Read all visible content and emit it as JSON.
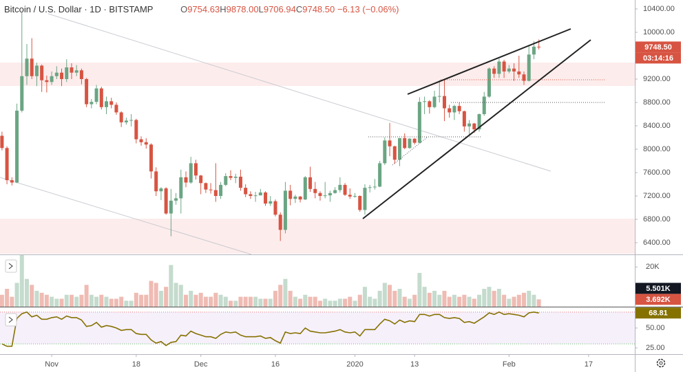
{
  "chart_data": {
    "type": "candlestick",
    "title": "Bitcoin / U.S. Dollar · 1D · BITSTAMP",
    "ohlc_legend": [
      {
        "label": "O",
        "value": "9754.63"
      },
      {
        "label": "H",
        "value": "9878.00"
      },
      {
        "label": "L",
        "value": "9706.94"
      },
      {
        "label": "C",
        "value": "9748.50"
      }
    ],
    "change": "−6.13 (−0.06%)",
    "xlim": [
      -0.4,
      127.3
    ],
    "xticks": [
      {
        "value": 10,
        "label": "Nov"
      },
      {
        "value": 27,
        "label": "18"
      },
      {
        "value": 40,
        "label": "Dec"
      },
      {
        "value": 55,
        "label": "16"
      },
      {
        "value": 71,
        "label": "2020"
      },
      {
        "value": 83,
        "label": "13"
      },
      {
        "value": 102,
        "label": "Feb"
      },
      {
        "value": 118,
        "label": "17"
      }
    ],
    "up_color": "#6ba583",
    "down_color": "#d75442",
    "ylim": [
      6200,
      10553
    ],
    "yticks": [
      {
        "value": 10400,
        "label": "10400.00"
      },
      {
        "value": 10000,
        "label": "10000.00"
      },
      {
        "value": 9200,
        "label": "9200.00"
      },
      {
        "value": 8800,
        "label": "8800.00"
      },
      {
        "value": 8400,
        "label": "8400.00"
      },
      {
        "value": 8000,
        "label": "8000.00"
      },
      {
        "value": 7600,
        "label": "7600.00"
      },
      {
        "value": 7200,
        "label": "7200.00"
      },
      {
        "value": 6800,
        "label": "6800.00"
      },
      {
        "value": 6400,
        "label": "6400.00"
      }
    ],
    "last_value_label": "9748.50",
    "countdown": "03:14:16",
    "values": [
      [
        8230,
        8300,
        7980,
        8020
      ],
      [
        8020,
        8050,
        7400,
        7470
      ],
      [
        7470,
        7520,
        7380,
        7430
      ],
      [
        7430,
        8780,
        7420,
        8660
      ],
      [
        8660,
        10350,
        8630,
        9250
      ],
      [
        9250,
        9800,
        9100,
        9550
      ],
      [
        9550,
        9900,
        9200,
        9250
      ],
      [
        9250,
        9480,
        9080,
        9430
      ],
      [
        9430,
        9450,
        8980,
        9180
      ],
      [
        9180,
        9260,
        8970,
        9150
      ],
      [
        9150,
        9330,
        9100,
        9250
      ],
      [
        9250,
        9420,
        9200,
        9310
      ],
      [
        9310,
        9380,
        9080,
        9200
      ],
      [
        9200,
        9540,
        9150,
        9400
      ],
      [
        9400,
        9470,
        9200,
        9310
      ],
      [
        9310,
        9440,
        9250,
        9350
      ],
      [
        9350,
        9380,
        9110,
        9200
      ],
      [
        9200,
        9220,
        8720,
        8770
      ],
      [
        8770,
        8860,
        8700,
        8810
      ],
      [
        8810,
        9100,
        8770,
        9040
      ],
      [
        9040,
        9070,
        8680,
        8720
      ],
      [
        8720,
        8900,
        8600,
        8820
      ],
      [
        8820,
        8880,
        8700,
        8760
      ],
      [
        8760,
        8800,
        8590,
        8630
      ],
      [
        8630,
        8650,
        8380,
        8460
      ],
      [
        8460,
        8540,
        8420,
        8490
      ],
      [
        8490,
        8600,
        8390,
        8500
      ],
      [
        8500,
        8520,
        8100,
        8170
      ],
      [
        8170,
        8220,
        8060,
        8120
      ],
      [
        8120,
        8190,
        8010,
        8080
      ],
      [
        8080,
        8100,
        7500,
        7620
      ],
      [
        7620,
        7690,
        7200,
        7280
      ],
      [
        7280,
        7350,
        7130,
        7330
      ],
      [
        7330,
        7350,
        6880,
        6900
      ],
      [
        6900,
        7320,
        6510,
        7120
      ],
      [
        7120,
        7250,
        7050,
        7160
      ],
      [
        7160,
        7650,
        6900,
        7520
      ],
      [
        7520,
        7620,
        7350,
        7430
      ],
      [
        7430,
        7870,
        7410,
        7760
      ],
      [
        7760,
        7820,
        7480,
        7550
      ],
      [
        7550,
        7560,
        7230,
        7420
      ],
      [
        7420,
        7430,
        7250,
        7310
      ],
      [
        7310,
        7420,
        7240,
        7300
      ],
      [
        7300,
        7760,
        7100,
        7200
      ],
      [
        7200,
        7440,
        7150,
        7390
      ],
      [
        7390,
        7590,
        7370,
        7540
      ],
      [
        7540,
        7640,
        7470,
        7510
      ],
      [
        7510,
        7580,
        7420,
        7530
      ],
      [
        7530,
        7650,
        7290,
        7340
      ],
      [
        7340,
        7400,
        7180,
        7230
      ],
      [
        7230,
        7280,
        7150,
        7200
      ],
      [
        7200,
        7270,
        7100,
        7210
      ],
      [
        7210,
        7320,
        7210,
        7260
      ],
      [
        7260,
        7280,
        7030,
        7070
      ],
      [
        7070,
        7200,
        7030,
        7110
      ],
      [
        7110,
        7140,
        6850,
        6880
      ],
      [
        6880,
        6920,
        6430,
        6620
      ],
      [
        6620,
        7440,
        6560,
        7290
      ],
      [
        7290,
        7390,
        7040,
        7150
      ],
      [
        7150,
        7220,
        7080,
        7190
      ],
      [
        7190,
        7200,
        7090,
        7140
      ],
      [
        7140,
        7540,
        7130,
        7520
      ],
      [
        7520,
        7700,
        7270,
        7320
      ],
      [
        7320,
        7440,
        7160,
        7250
      ],
      [
        7250,
        7280,
        7120,
        7200
      ],
      [
        7200,
        7440,
        7160,
        7210
      ],
      [
        7210,
        7290,
        7100,
        7250
      ],
      [
        7250,
        7350,
        7240,
        7300
      ],
      [
        7300,
        7520,
        7260,
        7390
      ],
      [
        7390,
        7420,
        7200,
        7220
      ],
      [
        7220,
        7330,
        7150,
        7190
      ],
      [
        7190,
        7250,
        7170,
        7200
      ],
      [
        7200,
        7210,
        6930,
        6960
      ],
      [
        6960,
        7400,
        6880,
        7340
      ],
      [
        7340,
        7390,
        7260,
        7350
      ],
      [
        7350,
        7490,
        7310,
        7360
      ],
      [
        7360,
        7800,
        7350,
        7760
      ],
      [
        7760,
        8200,
        7730,
        8150
      ],
      [
        8150,
        8450,
        7880,
        8050
      ],
      [
        8050,
        8060,
        7750,
        7820
      ],
      [
        7820,
        8190,
        7710,
        8190
      ],
      [
        8190,
        8270,
        8000,
        8020
      ],
      [
        8020,
        8190,
        8010,
        8180
      ],
      [
        8180,
        8190,
        8080,
        8110
      ],
      [
        8110,
        8890,
        8100,
        8810
      ],
      [
        8810,
        8900,
        8600,
        8820
      ],
      [
        8820,
        8840,
        8610,
        8720
      ],
      [
        8720,
        9000,
        8700,
        8900
      ],
      [
        8900,
        9180,
        8800,
        8910
      ],
      [
        8910,
        9190,
        8480,
        8700
      ],
      [
        8700,
        8760,
        8540,
        8630
      ],
      [
        8630,
        8760,
        8500,
        8740
      ],
      [
        8740,
        8800,
        8600,
        8650
      ],
      [
        8650,
        8660,
        8300,
        8390
      ],
      [
        8390,
        8500,
        8240,
        8440
      ],
      [
        8440,
        8450,
        8280,
        8340
      ],
      [
        8340,
        8610,
        8300,
        8600
      ],
      [
        8600,
        8980,
        8570,
        8900
      ],
      [
        8900,
        9400,
        8880,
        9380
      ],
      [
        9380,
        9420,
        9220,
        9290
      ],
      [
        9290,
        9550,
        9220,
        9500
      ],
      [
        9500,
        9530,
        9220,
        9330
      ],
      [
        9330,
        9440,
        9300,
        9380
      ],
      [
        9380,
        9470,
        9170,
        9330
      ],
      [
        9330,
        9600,
        9220,
        9280
      ],
      [
        9280,
        9330,
        9100,
        9170
      ],
      [
        9170,
        9770,
        9160,
        9620
      ],
      [
        9620,
        9850,
        9540,
        9754.63
      ],
      [
        9754.63,
        9878,
        9706.94,
        9748.5
      ]
    ],
    "volume": {
      "ylim": [
        0,
        26
      ],
      "yticks": [
        {
          "value": 20,
          "label": "20K"
        }
      ],
      "up_color": "#6ba58366",
      "down_color": "#d7544266",
      "values": [
        6,
        9,
        5,
        12,
        26,
        14,
        11,
        8,
        7,
        6,
        5,
        4,
        4,
        6,
        6,
        5,
        6,
        11,
        6,
        5,
        6,
        5,
        4,
        4,
        5,
        3,
        3,
        7,
        6,
        6,
        13,
        12,
        8,
        10,
        21,
        12,
        11,
        6,
        8,
        6,
        7,
        5,
        5,
        7,
        6,
        5,
        3,
        3,
        5,
        5,
        5,
        5,
        4,
        4,
        4,
        8,
        11,
        14,
        8,
        5,
        4,
        6,
        5,
        5,
        3,
        4,
        3,
        3,
        4,
        4,
        5,
        3,
        6,
        10,
        5,
        4,
        8,
        12,
        11,
        8,
        9,
        5,
        4,
        6,
        17,
        10,
        7,
        8,
        6,
        8,
        5,
        6,
        5,
        6,
        5,
        4,
        6,
        9,
        10,
        8,
        9,
        6,
        4,
        5,
        6,
        7,
        8,
        6,
        3.692
      ],
      "tags": [
        {
          "value": 3.692,
          "label": "3.692K",
          "color": "#d75442"
        },
        {
          "value": 5.501,
          "label": "5.501K",
          "color": "#131722"
        }
      ]
    },
    "rsi": {
      "color": "#857100",
      "ylim": [
        17.2,
        75.9
      ],
      "yticks": [
        {
          "value": 50,
          "label": "50.00"
        },
        {
          "value": 25,
          "label": "25.00"
        }
      ],
      "bands": [
        70,
        30
      ],
      "band_colors": [
        "#e57373",
        "#66bb6a"
      ],
      "values": [
        30,
        27,
        27,
        62,
        68,
        70,
        64,
        66,
        61,
        61,
        63,
        64,
        61,
        65,
        63,
        63,
        60,
        52,
        53,
        57,
        51,
        53,
        52,
        50,
        47,
        48,
        48,
        43,
        42,
        42,
        35,
        31,
        33,
        28,
        32,
        33,
        41,
        40,
        46,
        43,
        41,
        39,
        39,
        37,
        42,
        45,
        44,
        45,
        41,
        39,
        39,
        39,
        40,
        37,
        38,
        34,
        31,
        45,
        43,
        44,
        43,
        50,
        46,
        45,
        44,
        44,
        45,
        46,
        48,
        45,
        44,
        45,
        40,
        48,
        48,
        48,
        55,
        61,
        59,
        55,
        60,
        57,
        59,
        58,
        67,
        67,
        65,
        67,
        67,
        63,
        62,
        63,
        62,
        57,
        58,
        56,
        60,
        64,
        69,
        67,
        70,
        67,
        68,
        67,
        66,
        64,
        69,
        70,
        68.81
      ]
    }
  }
}
